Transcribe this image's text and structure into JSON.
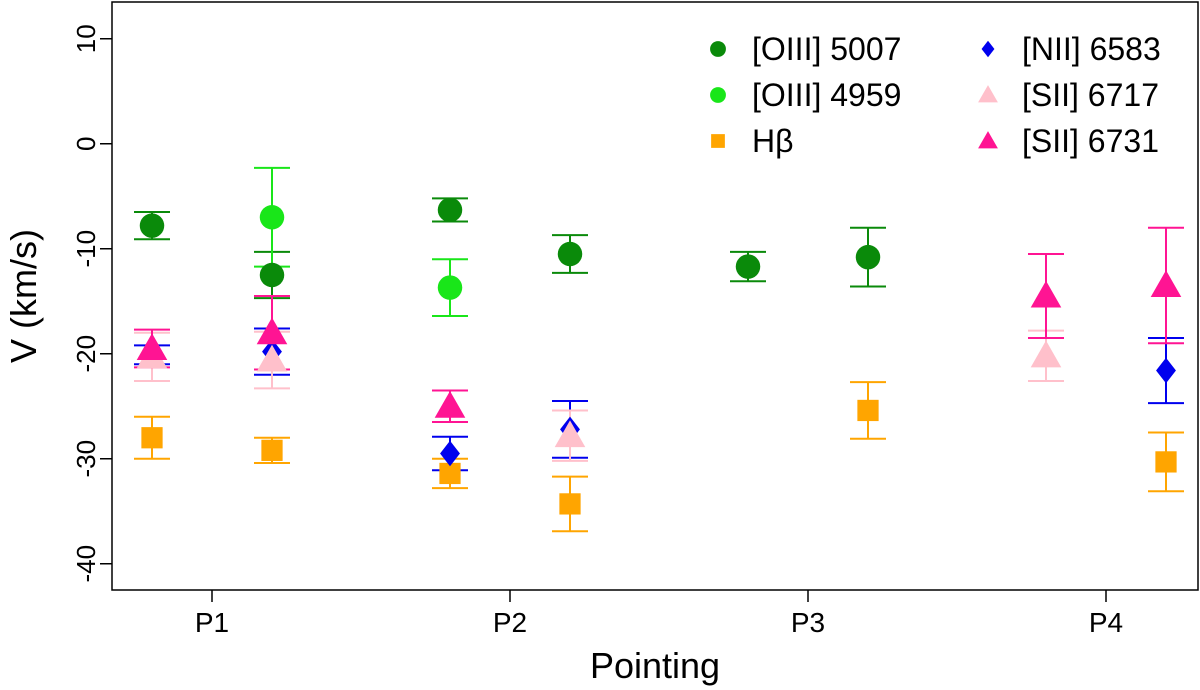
{
  "chart_data": {
    "type": "scatter",
    "title": "",
    "xlabel": "Pointing",
    "ylabel": "V (km/s)",
    "categories": [
      "P1",
      "P2",
      "P3",
      "P4"
    ],
    "ylim": [
      -42.5,
      13.5
    ],
    "yticks": [
      -40,
      -30,
      -20,
      -10,
      0,
      10
    ],
    "ytick_labels": [
      "-40",
      "-30",
      "-20",
      "-10",
      "0",
      "10"
    ],
    "grid": false,
    "legend_position": "top-right",
    "series": [
      {
        "name": "[OIII] 5007",
        "marker": "circle",
        "color": "#0a8a0a",
        "points": [
          {
            "category": "P1",
            "offset": -0.2,
            "y": -7.8,
            "err_low": 1.3,
            "err_high": 1.3
          },
          {
            "category": "P1",
            "offset": 0.2,
            "y": -12.5,
            "err_low": 2.2,
            "err_high": 2.2
          },
          {
            "category": "P2",
            "offset": -0.2,
            "y": -6.3,
            "err_low": 1.1,
            "err_high": 1.1
          },
          {
            "category": "P2",
            "offset": 0.2,
            "y": -10.5,
            "err_low": 1.8,
            "err_high": 1.8
          },
          {
            "category": "P3",
            "offset": -0.2,
            "y": -11.7,
            "err_low": 1.4,
            "err_high": 1.4
          },
          {
            "category": "P3",
            "offset": 0.2,
            "y": -10.8,
            "err_low": 2.8,
            "err_high": 2.8
          }
        ]
      },
      {
        "name": "[OIII] 4959",
        "marker": "circle",
        "color": "#19e619",
        "points": [
          {
            "category": "P1",
            "offset": 0.2,
            "y": -7.0,
            "err_low": 4.7,
            "err_high": 4.7
          },
          {
            "category": "P2",
            "offset": -0.2,
            "y": -13.7,
            "err_low": 2.7,
            "err_high": 2.7
          }
        ]
      },
      {
        "name": "Hβ",
        "marker": "square",
        "color": "#ffa500",
        "points": [
          {
            "category": "P1",
            "offset": -0.2,
            "y": -28.0,
            "err_low": 2.0,
            "err_high": 2.0
          },
          {
            "category": "P1",
            "offset": 0.2,
            "y": -29.2,
            "err_low": 1.2,
            "err_high": 1.2
          },
          {
            "category": "P2",
            "offset": -0.2,
            "y": -31.4,
            "err_low": 1.4,
            "err_high": 1.4
          },
          {
            "category": "P2",
            "offset": 0.2,
            "y": -34.3,
            "err_low": 2.6,
            "err_high": 2.6
          },
          {
            "category": "P3",
            "offset": 0.2,
            "y": -25.4,
            "err_low": 2.7,
            "err_high": 2.7
          },
          {
            "category": "P4",
            "offset": 0.2,
            "y": -30.3,
            "err_low": 2.8,
            "err_high": 2.8
          }
        ]
      },
      {
        "name": "[NII] 6583",
        "marker": "diamond",
        "color": "#0000ee",
        "points": [
          {
            "category": "P1",
            "offset": -0.2,
            "y": -20.1,
            "err_low": 0.9,
            "err_high": 0.9
          },
          {
            "category": "P1",
            "offset": 0.2,
            "y": -19.8,
            "err_low": 2.2,
            "err_high": 2.2
          },
          {
            "category": "P2",
            "offset": -0.2,
            "y": -29.5,
            "err_low": 1.6,
            "err_high": 1.6
          },
          {
            "category": "P2",
            "offset": 0.2,
            "y": -27.2,
            "err_low": 2.7,
            "err_high": 2.7
          },
          {
            "category": "P4",
            "offset": 0.2,
            "y": -21.6,
            "err_low": 3.1,
            "err_high": 3.1
          }
        ]
      },
      {
        "name": "[SII] 6717",
        "marker": "triangle",
        "color": "#ffc0cb",
        "points": [
          {
            "category": "P1",
            "offset": -0.2,
            "y": -20.3,
            "err_low": 2.3,
            "err_high": 2.3
          },
          {
            "category": "P1",
            "offset": 0.2,
            "y": -20.6,
            "err_low": 2.7,
            "err_high": 2.7
          },
          {
            "category": "P2",
            "offset": 0.2,
            "y": -27.8,
            "err_low": 2.4,
            "err_high": 2.4
          },
          {
            "category": "P4",
            "offset": -0.2,
            "y": -20.2,
            "err_low": 2.4,
            "err_high": 2.4
          }
        ]
      },
      {
        "name": "[SII] 6731",
        "marker": "triangle",
        "color": "#ff1493",
        "points": [
          {
            "category": "P1",
            "offset": -0.2,
            "y": -19.5,
            "err_low": 1.8,
            "err_high": 1.8
          },
          {
            "category": "P1",
            "offset": 0.2,
            "y": -18.0,
            "err_low": 3.5,
            "err_high": 3.5
          },
          {
            "category": "P2",
            "offset": -0.2,
            "y": -25.0,
            "err_low": 1.5,
            "err_high": 1.5
          },
          {
            "category": "P4",
            "offset": -0.2,
            "y": -14.5,
            "err_low": 4.0,
            "err_high": 4.0
          },
          {
            "category": "P4",
            "offset": 0.2,
            "y": -13.5,
            "err_low": 5.5,
            "err_high": 5.5
          }
        ]
      }
    ],
    "legend": {
      "entries": [
        "[OIII] 5007",
        "[OIII] 4959",
        "Hβ",
        "[NII] 6583",
        "[SII] 6717",
        "[SII] 6731"
      ]
    }
  }
}
